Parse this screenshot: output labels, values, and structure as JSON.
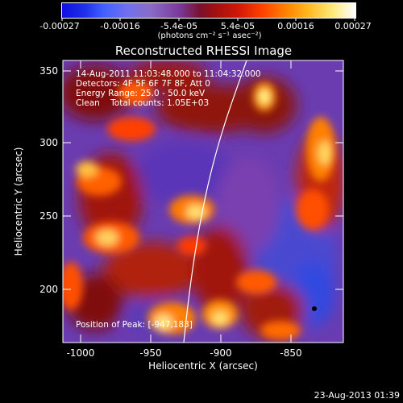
{
  "colorbar": {
    "tick_labels": [
      "-0.00027",
      "-0.00016",
      "-5.4e-05",
      "5.4e-05",
      "0.00016",
      "0.00027"
    ],
    "units_label": "(photons cm⁻² s⁻¹ asec⁻²)"
  },
  "plot": {
    "title": "Reconstructed RHESSI Image",
    "x_axis_label": "Heliocentric X (arcsec)",
    "y_axis_label": "Heliocentric Y (arcsec)",
    "x_tick_labels": [
      "-1000",
      "-950",
      "-900",
      "-850"
    ],
    "y_tick_labels": [
      "350",
      "300",
      "250",
      "200"
    ],
    "info_lines": [
      "14-Aug-2011 11:03:48.000 to 11:04:32.000",
      "Detectors: 4F 5F 6F 7F 8F, Att 0",
      "Energy Range: 25.0 - 50.0 keV",
      "Clean    Total counts: 1.05E+03"
    ],
    "peak_label": "Position of Peak: [-947,183]"
  },
  "footer": {
    "timestamp": "23-Aug-2013 01:39"
  },
  "colors": {
    "negative_min": "#1010d8",
    "zero_mid": "#6a3cb0",
    "positive_low": "#c0201a",
    "positive_high": "#ffffff"
  }
}
